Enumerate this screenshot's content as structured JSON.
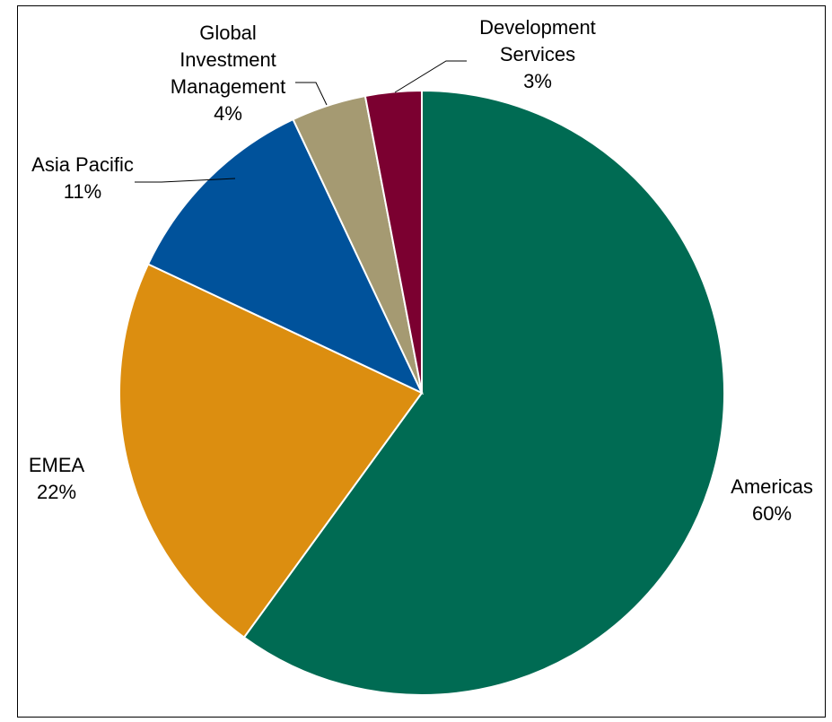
{
  "chart_data": {
    "type": "pie",
    "title": "",
    "start_angle_deg": 0,
    "direction": "clockwise",
    "slices": [
      {
        "name": "Americas",
        "pct_label": "60%",
        "value": 60,
        "color": "#006b53",
        "label_lines": [
          "Americas",
          "60%"
        ]
      },
      {
        "name": "EMEA",
        "pct_label": "22%",
        "value": 22,
        "color": "#dc8e10",
        "label_lines": [
          "EMEA",
          "22%"
        ]
      },
      {
        "name": "Asia Pacific",
        "pct_label": "11%",
        "value": 11,
        "color": "#00529b",
        "label_lines": [
          "Asia Pacific",
          "11%"
        ]
      },
      {
        "name": "Global Investment Management",
        "pct_label": "4%",
        "value": 4,
        "color": "#a59a72",
        "label_lines": [
          "Global",
          "Investment",
          "Management",
          "4%"
        ]
      },
      {
        "name": "Development Services",
        "pct_label": "3%",
        "value": 3,
        "color": "#7b0030",
        "label_lines": [
          "Development",
          "Services",
          "3%"
        ]
      }
    ]
  }
}
